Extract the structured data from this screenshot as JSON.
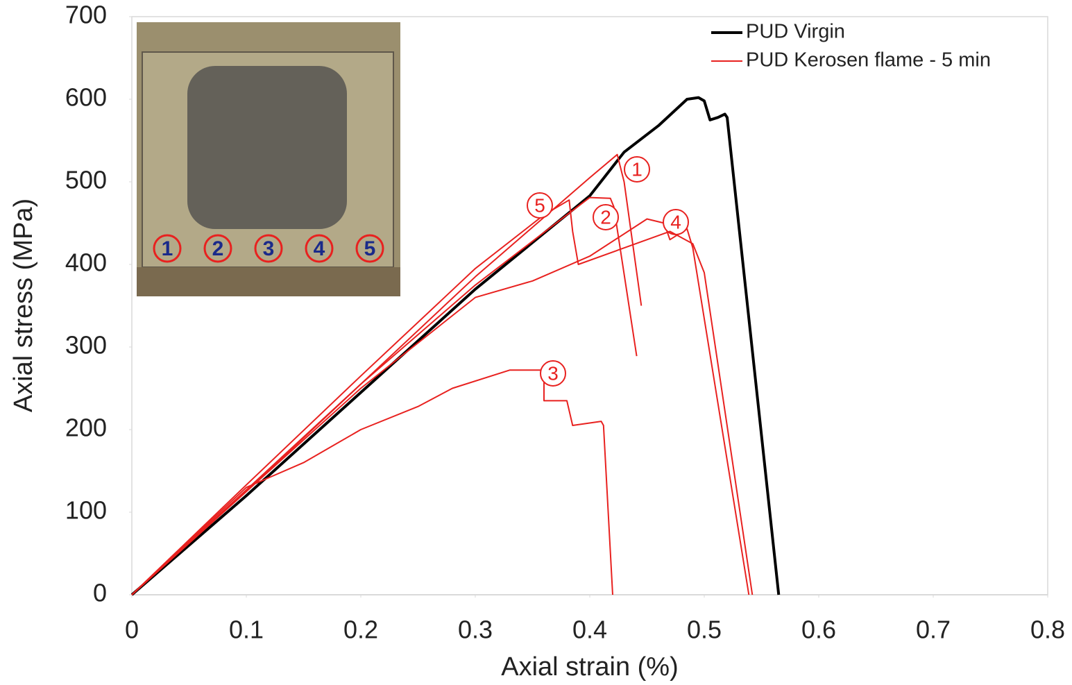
{
  "chart_data": {
    "type": "line",
    "xlabel": "Axial strain (%)",
    "ylabel": "Axial stress (MPa)",
    "xlim": [
      0,
      0.8
    ],
    "ylim": [
      0,
      700
    ],
    "xticks": [
      0,
      0.1,
      0.2,
      0.3,
      0.4,
      0.5,
      0.6,
      0.7,
      0.8
    ],
    "yticks": [
      0,
      100,
      200,
      300,
      400,
      500,
      600,
      700
    ],
    "grid": false,
    "legend": "top-right",
    "series": [
      {
        "name": "PUD Virgin",
        "color": "#000000",
        "width": 4,
        "curves": [
          {
            "x": [
              0,
              0.1,
              0.2,
              0.3,
              0.4,
              0.43,
              0.46,
              0.485,
              0.495,
              0.5,
              0.505,
              0.512,
              0.518,
              0.52,
              0.565
            ],
            "values": [
              0,
              120,
              245,
              370,
              483,
              536,
              568,
              600,
              602,
              598,
              575,
              578,
              582,
              578,
              0
            ]
          }
        ]
      },
      {
        "name": "PUD Kerosen flame - 5 min",
        "color": "#e8211f",
        "width": 2,
        "curves": [
          {
            "label": "1",
            "x": [
              0,
              0.1,
              0.2,
              0.3,
              0.4,
              0.424,
              0.43,
              0.445
            ],
            "values": [
              0,
              125,
              255,
              385,
              505,
              533,
              500,
              350
            ]
          },
          {
            "label": "2",
            "x": [
              0,
              0.1,
              0.2,
              0.3,
              0.38,
              0.4,
              0.418,
              0.421,
              0.441
            ],
            "values": [
              0,
              127,
              255,
              375,
              460,
              481,
              480,
              470,
              289
            ]
          },
          {
            "label": "3",
            "x": [
              0,
              0.1,
              0.15,
              0.2,
              0.25,
              0.28,
              0.33,
              0.36,
              0.36,
              0.38,
              0.385,
              0.41,
              0.412,
              0.42
            ],
            "values": [
              0,
              130,
              160,
              200,
              228,
              250,
              272,
              272,
              235,
              235,
              205,
              210,
              205,
              0
            ]
          },
          {
            "label": "4",
            "x": [
              0,
              0.1,
              0.2,
              0.3,
              0.35,
              0.4,
              0.45,
              0.465,
              0.47,
              0.485,
              0.49,
              0.539
            ],
            "values": [
              0,
              125,
              250,
              360,
              380,
              410,
              455,
              450,
              430,
              443,
              420,
              0
            ]
          },
          {
            "label": "5",
            "x": [
              0,
              0.1,
              0.2,
              0.3,
              0.36,
              0.382,
              0.385,
              0.39,
              0.43,
              0.47,
              0.49,
              0.5,
              0.542
            ],
            "values": [
              0,
              133,
              265,
              395,
              460,
              478,
              440,
              400,
              420,
              440,
              425,
              390,
              0
            ]
          }
        ]
      }
    ],
    "inset": {
      "labels": [
        "1",
        "2",
        "3",
        "4",
        "5"
      ]
    }
  }
}
